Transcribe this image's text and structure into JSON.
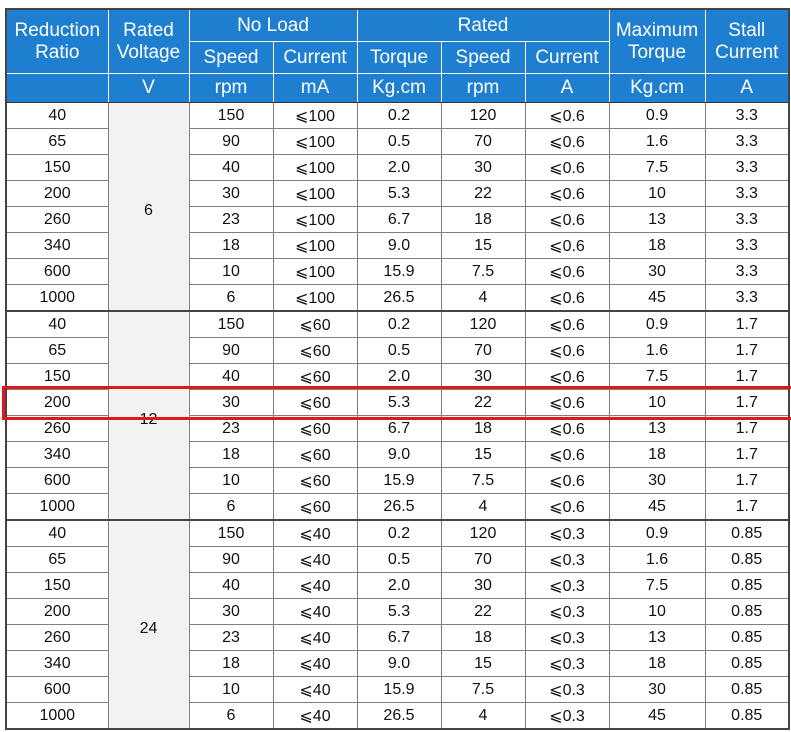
{
  "header": {
    "reduction_ratio": "Reduction Ratio",
    "rated_voltage": "Rated Voltage",
    "no_load": "No Load",
    "rated": "Rated",
    "maximum_torque": "Maximum Torque",
    "stall_current": "Stall Current",
    "sub": {
      "no_load_speed": "Speed",
      "no_load_current": "Current",
      "rated_torque": "Torque",
      "rated_speed": "Speed",
      "rated_current": "Current"
    },
    "units": [
      "V",
      "rpm",
      "mA",
      "Kg.cm",
      "rpm",
      "A",
      "Kg.cm",
      "A"
    ]
  },
  "groups": [
    {
      "voltage": "6",
      "rows": [
        [
          "40",
          "150",
          "⩽100",
          "0.2",
          "120",
          "⩽0.6",
          "0.9",
          "3.3"
        ],
        [
          "65",
          "90",
          "⩽100",
          "0.5",
          "70",
          "⩽0.6",
          "1.6",
          "3.3"
        ],
        [
          "150",
          "40",
          "⩽100",
          "2.0",
          "30",
          "⩽0.6",
          "7.5",
          "3.3"
        ],
        [
          "200",
          "30",
          "⩽100",
          "5.3",
          "22",
          "⩽0.6",
          "10",
          "3.3"
        ],
        [
          "260",
          "23",
          "⩽100",
          "6.7",
          "18",
          "⩽0.6",
          "13",
          "3.3"
        ],
        [
          "340",
          "18",
          "⩽100",
          "9.0",
          "15",
          "⩽0.6",
          "18",
          "3.3"
        ],
        [
          "600",
          "10",
          "⩽100",
          "15.9",
          "7.5",
          "⩽0.6",
          "30",
          "3.3"
        ],
        [
          "1000",
          "6",
          "⩽100",
          "26.5",
          "4",
          "⩽0.6",
          "45",
          "3.3"
        ]
      ]
    },
    {
      "voltage": "12",
      "rows": [
        [
          "40",
          "150",
          "⩽60",
          "0.2",
          "120",
          "⩽0.6",
          "0.9",
          "1.7"
        ],
        [
          "65",
          "90",
          "⩽60",
          "0.5",
          "70",
          "⩽0.6",
          "1.6",
          "1.7"
        ],
        [
          "150",
          "40",
          "⩽60",
          "2.0",
          "30",
          "⩽0.6",
          "7.5",
          "1.7"
        ],
        [
          "200",
          "30",
          "⩽60",
          "5.3",
          "22",
          "⩽0.6",
          "10",
          "1.7"
        ],
        [
          "260",
          "23",
          "⩽60",
          "6.7",
          "18",
          "⩽0.6",
          "13",
          "1.7"
        ],
        [
          "340",
          "18",
          "⩽60",
          "9.0",
          "15",
          "⩽0.6",
          "18",
          "1.7"
        ],
        [
          "600",
          "10",
          "⩽60",
          "15.9",
          "7.5",
          "⩽0.6",
          "30",
          "1.7"
        ],
        [
          "1000",
          "6",
          "⩽60",
          "26.5",
          "4",
          "⩽0.6",
          "45",
          "1.7"
        ]
      ]
    },
    {
      "voltage": "24",
      "rows": [
        [
          "40",
          "150",
          "⩽40",
          "0.2",
          "120",
          "⩽0.3",
          "0.9",
          "0.85"
        ],
        [
          "65",
          "90",
          "⩽40",
          "0.5",
          "70",
          "⩽0.3",
          "1.6",
          "0.85"
        ],
        [
          "150",
          "40",
          "⩽40",
          "2.0",
          "30",
          "⩽0.3",
          "7.5",
          "0.85"
        ],
        [
          "200",
          "30",
          "⩽40",
          "5.3",
          "22",
          "⩽0.3",
          "10",
          "0.85"
        ],
        [
          "260",
          "23",
          "⩽40",
          "6.7",
          "18",
          "⩽0.3",
          "13",
          "0.85"
        ],
        [
          "340",
          "18",
          "⩽40",
          "9.0",
          "15",
          "⩽0.3",
          "18",
          "0.85"
        ],
        [
          "600",
          "10",
          "⩽40",
          "15.9",
          "7.5",
          "⩽0.3",
          "30",
          "0.85"
        ],
        [
          "1000",
          "6",
          "⩽40",
          "26.5",
          "4",
          "⩽0.3",
          "45",
          "0.85"
        ]
      ]
    }
  ],
  "highlight": {
    "group": 1,
    "row": 3,
    "color": "#e01818"
  },
  "colors": {
    "header_bg": "#1e7fd0",
    "header_text": "#ffffff",
    "voltage_bg": "#f2f2f2"
  }
}
